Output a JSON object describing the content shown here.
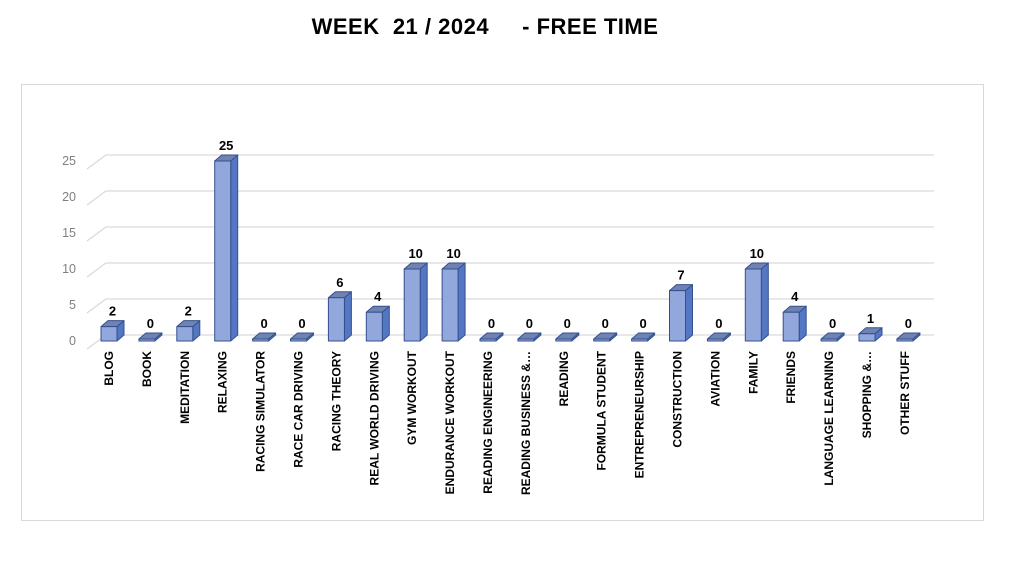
{
  "title": "WEEK  21 / 2024     - FREE TIME",
  "chart_data": {
    "type": "bar",
    "style": "3d-column",
    "title": "WEEK  21 / 2024     - FREE TIME",
    "categories": [
      "BLOG",
      "BOOK",
      "MEDITATION",
      "RELAXING",
      "RACING SIMULATOR",
      "RACE CAR DRIVING",
      "RACING THEORY",
      "REAL WORLD DRIVING",
      "GYM WORKOUT",
      "ENDURANCE WORKOUT",
      "READING ENGINEERING",
      "READING BUSINESS &…",
      "READING",
      "FORMULA STUDENT",
      "ENTREPRENEURSHIP",
      "CONSTRUCTION",
      "AVIATION",
      "FAMILY",
      "FRIENDS",
      "LANGUAGE LEARNING",
      "SHOPPING &…",
      "OTHER STUFF"
    ],
    "values": [
      2,
      0,
      2,
      25,
      0,
      0,
      6,
      4,
      10,
      10,
      0,
      0,
      0,
      0,
      0,
      7,
      0,
      10,
      4,
      0,
      1,
      0
    ],
    "xlabel": "",
    "ylabel": "",
    "ylim": [
      0,
      25
    ],
    "yticks": [
      0,
      5,
      10,
      15,
      20,
      25
    ],
    "grid": true,
    "legend": false,
    "data_labels": true,
    "colors": {
      "bar_front": "#92A7DC",
      "bar_top": "#6F82B2",
      "bar_side": "#5377C2",
      "bar_stroke": "#35508F",
      "gridline": "#D9D9D9",
      "chart_border": "#D9D9D9",
      "tick_label": "#808080",
      "data_label": "#000000",
      "category_label": "#000000",
      "title_color": "#000000"
    }
  }
}
